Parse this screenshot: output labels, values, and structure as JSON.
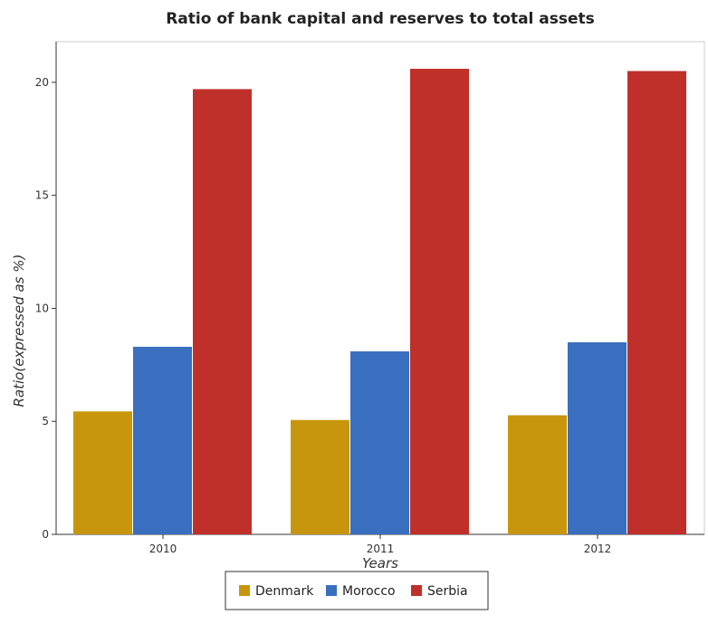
{
  "chart_data": {
    "type": "bar",
    "title": "Ratio of bank capital and reserves to total assets",
    "xlabel": "Years",
    "ylabel": "Ratio(expressed as %)",
    "categories": [
      "2010",
      "2011",
      "2012"
    ],
    "ylim": [
      0,
      21.8
    ],
    "yticks": [
      0,
      5,
      10,
      15,
      20
    ],
    "grid": false,
    "legend_position": "bottom",
    "series": [
      {
        "name": "Denmark",
        "color": "#c8960c",
        "values": [
          5.44,
          5.06,
          5.27
        ]
      },
      {
        "name": "Morocco",
        "color": "#3a6fbf",
        "values": [
          8.3,
          8.1,
          8.5
        ]
      },
      {
        "name": "Serbia",
        "color": "#c0302a",
        "values": [
          19.7,
          20.6,
          20.5
        ]
      }
    ]
  }
}
